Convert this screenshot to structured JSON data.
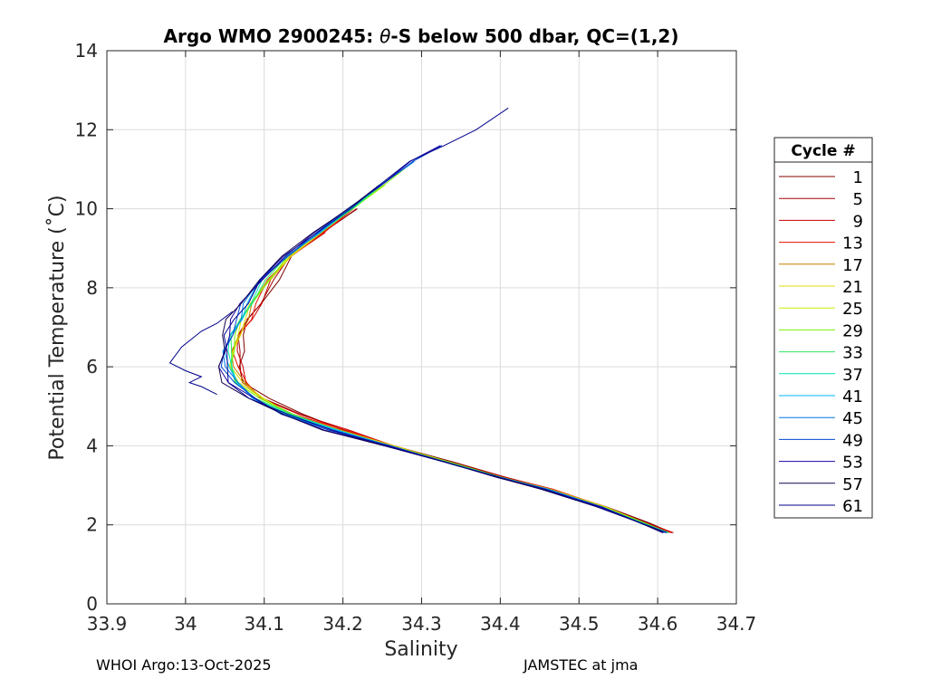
{
  "chart_data": {
    "type": "line",
    "title": "Argo WMO 2900245: θ-S below 500 dbar,  QC=(1,2)",
    "title_parts": {
      "prefix": "Argo WMO 2900245: ",
      "symbol": "θ",
      "suffix": "-S below 500 dbar,  QC=(1,2)"
    },
    "xlabel": "Salinity",
    "ylabel": "Potential Temperature (˚C)",
    "xlim": [
      33.9,
      34.7
    ],
    "ylim": [
      0,
      14
    ],
    "xticks": [
      33.9,
      34,
      34.1,
      34.2,
      34.3,
      34.4,
      34.5,
      34.6,
      34.7
    ],
    "xtick_labels": [
      "33.9",
      "34",
      "34.1",
      "34.2",
      "34.3",
      "34.4",
      "34.5",
      "34.6",
      "34.7"
    ],
    "yticks": [
      0,
      2,
      4,
      6,
      8,
      10,
      12,
      14
    ],
    "ytick_labels": [
      "0",
      "2",
      "4",
      "6",
      "8",
      "10",
      "12",
      "14"
    ],
    "grid": true,
    "legend": {
      "title": "Cycle #",
      "placement": "right-outside",
      "entries": [
        {
          "label": "1",
          "color": "#7f0000"
        },
        {
          "label": "5",
          "color": "#a30000"
        },
        {
          "label": "9",
          "color": "#c80000"
        },
        {
          "label": "13",
          "color": "#ec0e00"
        },
        {
          "label": "17",
          "color": "#c87a00"
        },
        {
          "label": "21",
          "color": "#e6dc00"
        },
        {
          "label": "25",
          "color": "#c8f000"
        },
        {
          "label": "29",
          "color": "#7cf000"
        },
        {
          "label": "33",
          "color": "#2ee660"
        },
        {
          "label": "37",
          "color": "#00e6b0"
        },
        {
          "label": "41",
          "color": "#00b4ff"
        },
        {
          "label": "45",
          "color": "#0078e6"
        },
        {
          "label": "49",
          "color": "#0046d2"
        },
        {
          "label": "53",
          "color": "#1e00a0"
        },
        {
          "label": "57",
          "color": "#140050"
        },
        {
          "label": "61",
          "color": "#00008c"
        }
      ]
    },
    "representative_profile": [
      [
        34.612,
        1.8
      ],
      [
        34.58,
        2.05
      ],
      [
        34.53,
        2.45
      ],
      [
        34.46,
        2.9
      ],
      [
        34.4,
        3.2
      ],
      [
        34.33,
        3.6
      ],
      [
        34.26,
        4.0
      ],
      [
        34.19,
        4.4
      ],
      [
        34.13,
        4.8
      ],
      [
        34.09,
        5.2
      ],
      [
        34.065,
        5.6
      ],
      [
        34.055,
        6.0
      ],
      [
        34.055,
        6.4
      ],
      [
        34.06,
        6.8
      ],
      [
        34.07,
        7.2
      ],
      [
        34.08,
        7.6
      ],
      [
        34.1,
        8.2
      ],
      [
        34.13,
        8.8
      ],
      [
        34.17,
        9.4
      ],
      [
        34.21,
        10.0
      ],
      [
        34.25,
        10.6
      ],
      [
        34.29,
        11.2
      ],
      [
        34.33,
        11.6
      ],
      [
        34.37,
        12.0
      ],
      [
        34.415,
        12.55
      ]
    ],
    "series": [
      {
        "name": "1",
        "color": "#7f0000",
        "s_offset": 0.014,
        "s_amp": 0.006,
        "t_top": 10.0,
        "t_bottom": 1.85
      },
      {
        "name": "5",
        "color": "#a30000",
        "s_offset": 0.011,
        "s_amp": 0.005,
        "t_top": 10.2,
        "t_bottom": 1.85
      },
      {
        "name": "9",
        "color": "#c80000",
        "s_offset": 0.012,
        "s_amp": 0.006,
        "t_top": 9.9,
        "t_bottom": 1.85
      },
      {
        "name": "13",
        "color": "#ec0e00",
        "s_offset": 0.009,
        "s_amp": 0.005,
        "t_top": 10.3,
        "t_bottom": 1.85
      },
      {
        "name": "17",
        "color": "#c87a00",
        "s_offset": 0.007,
        "s_amp": 0.004,
        "t_top": 10.4,
        "t_bottom": 1.85
      },
      {
        "name": "21",
        "color": "#e6dc00",
        "s_offset": 0.006,
        "s_amp": 0.004,
        "t_top": 10.5,
        "t_bottom": 1.82
      },
      {
        "name": "25",
        "color": "#c8f000",
        "s_offset": 0.004,
        "s_amp": 0.004,
        "t_top": 10.8,
        "t_bottom": 1.82
      },
      {
        "name": "29",
        "color": "#7cf000",
        "s_offset": 0.003,
        "s_amp": 0.004,
        "t_top": 11.5,
        "t_bottom": 1.82
      },
      {
        "name": "33",
        "color": "#2ee660",
        "s_offset": 0.001,
        "s_amp": 0.004,
        "t_top": 10.9,
        "t_bottom": 1.82
      },
      {
        "name": "37",
        "color": "#00e6b0",
        "s_offset": 0.0,
        "s_amp": 0.004,
        "t_top": 11.0,
        "t_bottom": 1.8
      },
      {
        "name": "41",
        "color": "#00b4ff",
        "s_offset": -0.002,
        "s_amp": 0.004,
        "t_top": 11.2,
        "t_bottom": 1.8
      },
      {
        "name": "45",
        "color": "#0078e6",
        "s_offset": -0.003,
        "s_amp": 0.005,
        "t_top": 11.3,
        "t_bottom": 1.8
      },
      {
        "name": "49",
        "color": "#0046d2",
        "s_offset": -0.005,
        "s_amp": 0.005,
        "t_top": 11.6,
        "t_bottom": 1.8
      },
      {
        "name": "53",
        "color": "#1e00a0",
        "s_offset": -0.008,
        "s_amp": 0.006,
        "t_top": 11.8,
        "t_bottom": 1.8
      },
      {
        "name": "57",
        "color": "#140050",
        "s_offset": -0.012,
        "s_amp": 0.007,
        "t_top": 11.0,
        "t_bottom": 1.8
      },
      {
        "name": "61",
        "color": "#00008c",
        "s_offset": -0.006,
        "s_amp": 0.006,
        "t_top": 12.55,
        "t_bottom": 1.78
      }
    ],
    "outlier_profile": {
      "name": "61-excursion",
      "color": "#00008c",
      "points": [
        [
          34.04,
          5.3
        ],
        [
          34.02,
          5.5
        ],
        [
          34.005,
          5.6
        ],
        [
          34.02,
          5.75
        ],
        [
          34.0,
          5.9
        ],
        [
          33.98,
          6.1
        ],
        [
          33.995,
          6.5
        ],
        [
          34.02,
          6.9
        ],
        [
          34.04,
          7.1
        ],
        [
          34.06,
          7.4
        ]
      ]
    }
  },
  "footer": {
    "left": "WHOI Argo:13-Oct-2025",
    "right": "JAMSTEC at jma"
  }
}
